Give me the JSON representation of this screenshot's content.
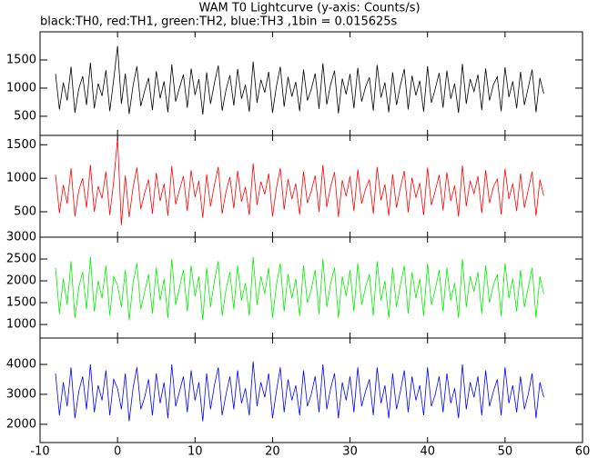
{
  "chart_data": {
    "type": "line",
    "title": "WAM T0 Lightcurve (y-axis: Counts/s)",
    "subtitle": "black:TH0, red:TH1, green:TH2, blue:TH3 ,1bin = 0.015625s",
    "xlim": [
      -10,
      60
    ],
    "xticks": [
      -10,
      0,
      10,
      20,
      30,
      40,
      50,
      60
    ],
    "x": [
      -8,
      -7.5,
      -7,
      -6.5,
      -6,
      -5.5,
      -5,
      -4.5,
      -4,
      -3.5,
      -3,
      -2.5,
      -2,
      -1.5,
      -1,
      -0.5,
      0,
      0.5,
      1,
      1.5,
      2,
      2.5,
      3,
      3.5,
      4,
      4.5,
      5,
      5.5,
      6,
      6.5,
      7,
      7.5,
      8,
      8.5,
      9,
      9.5,
      10,
      10.5,
      11,
      11.5,
      12,
      12.5,
      13,
      13.5,
      14,
      14.5,
      15,
      15.5,
      16,
      16.5,
      17,
      17.5,
      18,
      18.5,
      19,
      19.5,
      20,
      20.5,
      21,
      21.5,
      22,
      22.5,
      23,
      23.5,
      24,
      24.5,
      25,
      25.5,
      26,
      26.5,
      27,
      27.5,
      28,
      28.5,
      29,
      29.5,
      30,
      30.5,
      31,
      31.5,
      32,
      32.5,
      33,
      33.5,
      34,
      34.5,
      35,
      35.5,
      36,
      36.5,
      37,
      37.5,
      38,
      38.5,
      39,
      39.5,
      40,
      40.5,
      41,
      41.5,
      42,
      42.5,
      43,
      43.5,
      44,
      44.5,
      45,
      45.5,
      46,
      46.5,
      47,
      47.5,
      48,
      48.5,
      49,
      49.5,
      50,
      50.5,
      51,
      51.5,
      52,
      52.5,
      53,
      53.5,
      54,
      54.5,
      55
    ],
    "series": [
      {
        "color": "#000000",
        "ylim": [
          160,
          2000
        ],
        "yticks": [
          500,
          1000,
          1500
        ],
        "values": [
          1250,
          620,
          1100,
          780,
          1380,
          560,
          990,
          1210,
          700,
          1450,
          640,
          1080,
          860,
          1320,
          590,
          1150,
          1750,
          720,
          1260,
          540,
          1040,
          1390,
          680,
          950,
          1180,
          610,
          1300,
          820,
          1120,
          570,
          1420,
          760,
          1010,
          1240,
          650,
          1350,
          880,
          1160,
          530,
          1280,
          720,
          1090,
          1400,
          600,
          970,
          1230,
          690,
          1340,
          810,
          1060,
          580,
          1470,
          740,
          1150,
          920,
          1290,
          560,
          1030,
          1380,
          670,
          1200,
          850,
          1110,
          590,
          1330,
          780,
          980,
          1260,
          630,
          1440,
          710,
          1070,
          1310,
          550,
          1170,
          890,
          1250,
          640,
          1360,
          760,
          1020,
          1190,
          600,
          1410,
          830,
          1100,
          570,
          1280,
          700,
          1050,
          1340,
          620,
          1220,
          870,
          1130,
          580,
          1390,
          740,
          990,
          1270,
          650,
          1310,
          810,
          1080,
          560,
          1430,
          720,
          1160,
          940,
          1240,
          610,
          1350,
          780,
          1060,
          1200,
          590,
          1370,
          840,
          1120,
          640,
          1290,
          700,
          1010,
          1330,
          570,
          1180,
          900
        ]
      },
      {
        "color": "#ff0000",
        "ylim": [
          120,
          1640
        ],
        "yticks": [
          500,
          1000,
          1500
        ],
        "values": [
          1050,
          480,
          900,
          620,
          1150,
          430,
          820,
          1000,
          560,
          1200,
          500,
          880,
          700,
          1100,
          450,
          950,
          1600,
          300,
          1040,
          420,
          860,
          1160,
          540,
          780,
          980,
          470,
          1080,
          660,
          920,
          440,
          1180,
          610,
          830,
          1030,
          510,
          1120,
          720,
          960,
          410,
          1060,
          580,
          900,
          1170,
          470,
          800,
          1020,
          550,
          1110,
          650,
          870,
          450,
          1220,
          600,
          950,
          760,
          1070,
          430,
          850,
          1150,
          530,
          990,
          690,
          920,
          460,
          1100,
          630,
          810,
          1040,
          500,
          1200,
          570,
          880,
          1090,
          420,
          970,
          730,
          1030,
          510,
          1130,
          620,
          840,
          980,
          470,
          1170,
          670,
          910,
          440,
          1060,
          560,
          860,
          1110,
          490,
          1010,
          710,
          930,
          450,
          1160,
          600,
          810,
          1050,
          520,
          1090,
          660,
          890,
          430,
          1190,
          580,
          960,
          770,
          1030,
          480,
          1120,
          630,
          870,
          990,
          460,
          1140,
          690,
          920,
          510,
          1070,
          560,
          830,
          1100,
          440,
          980,
          740
        ]
      },
      {
        "color": "#00ee00",
        "ylim": [
          690,
          3000
        ],
        "yticks": [
          1000,
          1500,
          2000,
          2500,
          3000
        ],
        "values": [
          2300,
          1250,
          2050,
          1450,
          2450,
          1150,
          1850,
          2200,
          1350,
          2550,
          1300,
          2000,
          1600,
          2350,
          1200,
          2100,
          1900,
          1400,
          2250,
          1100,
          1950,
          2400,
          1350,
          1750,
          2150,
          1250,
          2300,
          1550,
          2050,
          1150,
          2500,
          1450,
          1850,
          2250,
          1300,
          2350,
          1650,
          2100,
          1100,
          2300,
          1400,
          2000,
          2450,
          1200,
          1800,
          2200,
          1350,
          2350,
          1550,
          1950,
          1200,
          2550,
          1450,
          2100,
          1700,
          2300,
          1150,
          1900,
          2400,
          1300,
          2150,
          1600,
          2050,
          1200,
          2350,
          1500,
          1800,
          2250,
          1250,
          2500,
          1400,
          1950,
          2300,
          1150,
          2100,
          1650,
          2250,
          1300,
          2400,
          1450,
          1850,
          2150,
          1200,
          2450,
          1550,
          2000,
          1150,
          2300,
          1400,
          1900,
          2350,
          1250,
          2200,
          1600,
          2050,
          1200,
          2400,
          1450,
          1800,
          2250,
          1300,
          2300,
          1550,
          1950,
          1150,
          2500,
          1400,
          2100,
          1750,
          2200,
          1250,
          2350,
          1500,
          1900,
          2150,
          1200,
          2400,
          1600,
          2050,
          1300,
          2250,
          1400,
          1850,
          2300,
          1150,
          2100,
          1700
        ]
      },
      {
        "color": "#0000ff",
        "ylim": [
          1390,
          4880
        ],
        "yticks": [
          2000,
          3000,
          4000
        ],
        "values": [
          3700,
          2300,
          3400,
          2600,
          3900,
          2200,
          3100,
          3600,
          2500,
          4000,
          2400,
          3300,
          2800,
          3800,
          2300,
          3500,
          3200,
          2500,
          3700,
          2100,
          3200,
          3900,
          2500,
          2900,
          3500,
          2300,
          3700,
          2700,
          3400,
          2200,
          4000,
          2600,
          3100,
          3600,
          2400,
          3800,
          2800,
          3400,
          2100,
          3700,
          2500,
          3300,
          3900,
          2300,
          3000,
          3600,
          2500,
          3800,
          2700,
          3200,
          2300,
          4100,
          2600,
          3400,
          2900,
          3700,
          2200,
          3100,
          3900,
          2400,
          3500,
          2800,
          3300,
          2300,
          3800,
          2600,
          3000,
          3600,
          2400,
          4000,
          2500,
          3200,
          3700,
          2200,
          3400,
          2800,
          3600,
          2400,
          3900,
          2600,
          3100,
          3500,
          2300,
          3900,
          2700,
          3300,
          2200,
          3700,
          2500,
          3100,
          3800,
          2400,
          3600,
          2800,
          3300,
          2300,
          3900,
          2600,
          3000,
          3600,
          2400,
          3700,
          2700,
          3200,
          2200,
          4000,
          2500,
          3400,
          2900,
          3600,
          2300,
          3800,
          2600,
          3100,
          3500,
          2300,
          3900,
          2700,
          3300,
          2400,
          3600,
          2500,
          3000,
          3700,
          2200,
          3400,
          2900
        ]
      }
    ]
  }
}
